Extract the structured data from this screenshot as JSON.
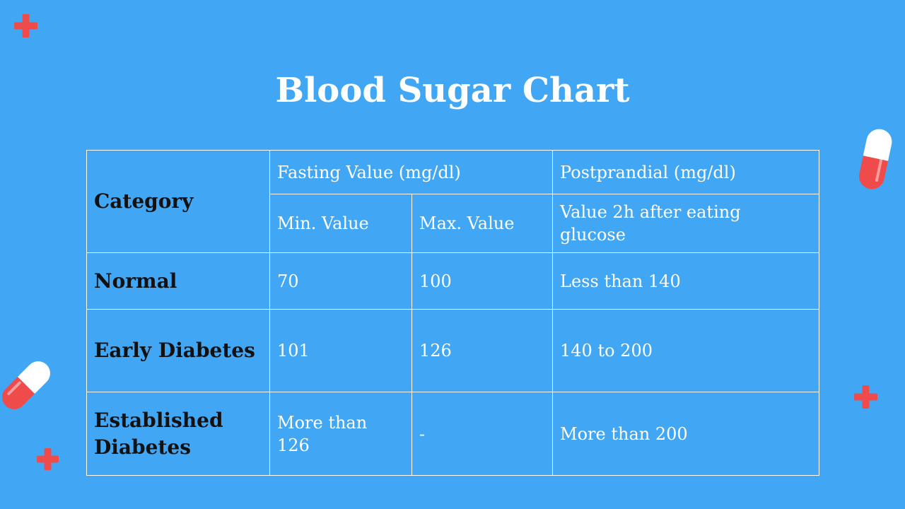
{
  "title": "Blood Sugar Chart",
  "colors": {
    "background": "#41a7f5",
    "accent_red": "#ef4b4b",
    "text_light": "#ffffff",
    "text_dark": "#111111"
  },
  "table": {
    "category_header": "Category",
    "fasting_header": "Fasting Value (mg/dl)",
    "postprandial_header": "Postprandial (mg/dl)",
    "min_header": "Min. Value",
    "max_header": "Max. Value",
    "post_sub_header": "Value 2h after eating glucose",
    "rows": [
      {
        "category": "Normal",
        "min": "70",
        "max": "100",
        "post": "Less than 140"
      },
      {
        "category": "Early Diabetes",
        "min": "101",
        "max": "126",
        "post": "140 to 200"
      },
      {
        "category": "Established Diabetes",
        "min": "More than 126",
        "max": "-",
        "post": "More than 200"
      }
    ]
  },
  "decorations": {
    "cross_icon": "red-plus",
    "pill_icon": "capsule"
  }
}
